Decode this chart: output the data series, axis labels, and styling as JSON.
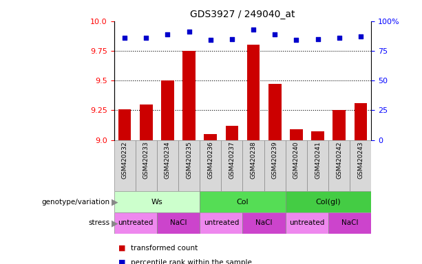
{
  "title": "GDS3927 / 249040_at",
  "samples": [
    "GSM420232",
    "GSM420233",
    "GSM420234",
    "GSM420235",
    "GSM420236",
    "GSM420237",
    "GSM420238",
    "GSM420239",
    "GSM420240",
    "GSM420241",
    "GSM420242",
    "GSM420243"
  ],
  "transformed_count": [
    9.26,
    9.3,
    9.5,
    9.75,
    9.05,
    9.12,
    9.8,
    9.47,
    9.09,
    9.07,
    9.25,
    9.31
  ],
  "percentile_rank": [
    86,
    86,
    89,
    91,
    84,
    85,
    93,
    89,
    84,
    85,
    86,
    87
  ],
  "ylim_left": [
    9.0,
    10.0
  ],
  "ylim_right": [
    0,
    100
  ],
  "yticks_left": [
    9.0,
    9.25,
    9.5,
    9.75,
    10.0
  ],
  "yticks_right": [
    0,
    25,
    50,
    75,
    100
  ],
  "bar_color": "#cc0000",
  "dot_color": "#0000cc",
  "genotype_groups": [
    {
      "label": "Ws",
      "start": 0,
      "end": 4,
      "color": "#ccffcc"
    },
    {
      "label": "Col",
      "start": 4,
      "end": 8,
      "color": "#55dd55"
    },
    {
      "label": "Col(gl)",
      "start": 8,
      "end": 12,
      "color": "#44cc44"
    }
  ],
  "stress_groups": [
    {
      "label": "untreated",
      "start": 0,
      "end": 2,
      "color": "#ee88ee"
    },
    {
      "label": "NaCl",
      "start": 2,
      "end": 4,
      "color": "#cc44cc"
    },
    {
      "label": "untreated",
      "start": 4,
      "end": 6,
      "color": "#ee88ee"
    },
    {
      "label": "NaCl",
      "start": 6,
      "end": 8,
      "color": "#cc44cc"
    },
    {
      "label": "untreated",
      "start": 8,
      "end": 10,
      "color": "#ee88ee"
    },
    {
      "label": "NaCl",
      "start": 10,
      "end": 12,
      "color": "#cc44cc"
    }
  ],
  "sample_bg_color": "#d8d8d8",
  "legend_items": [
    {
      "label": "transformed count",
      "color": "#cc0000"
    },
    {
      "label": "percentile rank within the sample",
      "color": "#0000cc"
    }
  ],
  "title_fontsize": 10,
  "tick_fontsize": 8,
  "label_fontsize": 8,
  "sample_fontsize": 6.5,
  "annot_fontsize": 8
}
